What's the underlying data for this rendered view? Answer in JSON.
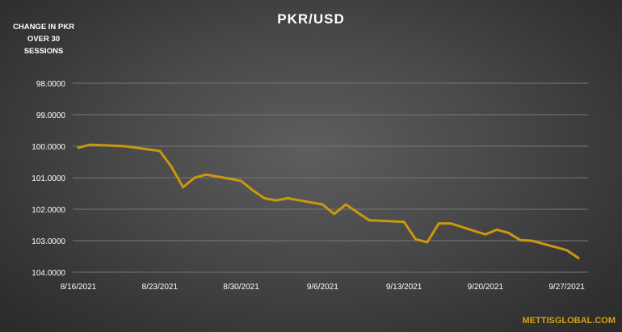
{
  "chart_data": {
    "type": "line",
    "title": "PKR/USD",
    "side_note": "CHANGE IN PKR OVER 30 SESSIONS",
    "xlabel": "",
    "ylabel": "",
    "y_inverted": true,
    "ylim": [
      98.0,
      104.0
    ],
    "y_ticks": [
      "98.0000",
      "99.0000",
      "100.0000",
      "101.0000",
      "102.0000",
      "103.0000",
      "104.0000"
    ],
    "x_range": [
      "2021-08-16",
      "2021-09-28"
    ],
    "x_ticks": [
      "8/16/2021",
      "8/23/2021",
      "8/30/2021",
      "9/6/2021",
      "9/13/2021",
      "9/20/2021",
      "9/27/2021"
    ],
    "grid": "horizontal",
    "line_color": "#c9980e",
    "series": [
      {
        "points": [
          {
            "x": "2021-08-16",
            "y": 100.05
          },
          {
            "x": "2021-08-17",
            "y": 99.95
          },
          {
            "x": "2021-08-20",
            "y": 100.0
          },
          {
            "x": "2021-08-23",
            "y": 100.15
          },
          {
            "x": "2021-08-24",
            "y": 100.65
          },
          {
            "x": "2021-08-25",
            "y": 101.3
          },
          {
            "x": "2021-08-26",
            "y": 101.0
          },
          {
            "x": "2021-08-27",
            "y": 100.9
          },
          {
            "x": "2021-08-30",
            "y": 101.1
          },
          {
            "x": "2021-08-31",
            "y": 101.4
          },
          {
            "x": "2021-09-01",
            "y": 101.65
          },
          {
            "x": "2021-09-02",
            "y": 101.72
          },
          {
            "x": "2021-09-03",
            "y": 101.65
          },
          {
            "x": "2021-09-06",
            "y": 101.85
          },
          {
            "x": "2021-09-07",
            "y": 102.15
          },
          {
            "x": "2021-09-08",
            "y": 101.85
          },
          {
            "x": "2021-09-10",
            "y": 102.35
          },
          {
            "x": "2021-09-13",
            "y": 102.4
          },
          {
            "x": "2021-09-14",
            "y": 102.95
          },
          {
            "x": "2021-09-15",
            "y": 103.05
          },
          {
            "x": "2021-09-16",
            "y": 102.45
          },
          {
            "x": "2021-09-17",
            "y": 102.45
          },
          {
            "x": "2021-09-20",
            "y": 102.8
          },
          {
            "x": "2021-09-21",
            "y": 102.65
          },
          {
            "x": "2021-09-22",
            "y": 102.75
          },
          {
            "x": "2021-09-23",
            "y": 102.98
          },
          {
            "x": "2021-09-24",
            "y": 103.0
          },
          {
            "x": "2021-09-27",
            "y": 103.3
          },
          {
            "x": "2021-09-28",
            "y": 103.55
          }
        ]
      }
    ]
  },
  "brand": "METTISGLOBAL.COM"
}
